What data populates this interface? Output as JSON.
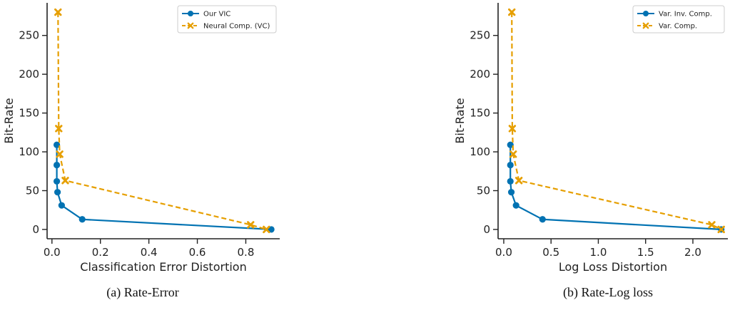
{
  "chart_data": [
    {
      "type": "line",
      "caption": "(a) Rate-Error",
      "xlabel": "Classification Error Distortion",
      "ylabel": "Bit-Rate",
      "xlim": [
        -0.02,
        0.94
      ],
      "ylim": [
        -12,
        292
      ],
      "xticks": [
        0.0,
        0.2,
        0.4,
        0.6,
        0.8
      ],
      "xtick_labels": [
        "0.0",
        "0.2",
        "0.4",
        "0.6",
        "0.8"
      ],
      "yticks": [
        0,
        50,
        100,
        150,
        200,
        250
      ],
      "ytick_labels": [
        "0",
        "50",
        "100",
        "150",
        "200",
        "250"
      ],
      "legend_position": "top-right",
      "series": [
        {
          "name": "Our VIC",
          "color": "#0072b2",
          "marker": "circle",
          "dashed": false,
          "x": [
            0.02,
            0.02,
            0.02,
            0.023,
            0.04,
            0.125,
            0.905
          ],
          "y": [
            109,
            83,
            62,
            48,
            31,
            13,
            0
          ]
        },
        {
          "name": "Neural Comp. (VC)",
          "color": "#e69f00",
          "marker": "x",
          "dashed": true,
          "x": [
            0.025,
            0.028,
            0.032,
            0.055,
            0.82,
            0.885
          ],
          "y": [
            280,
            130,
            97,
            63,
            6,
            0
          ]
        }
      ]
    },
    {
      "type": "line",
      "caption": "(b) Rate-Log loss",
      "xlabel": "Log Loss Distortion",
      "ylabel": "Bit-Rate",
      "xlim": [
        -0.06,
        2.37
      ],
      "ylim": [
        -12,
        292
      ],
      "xticks": [
        0.0,
        0.5,
        1.0,
        1.5,
        2.0
      ],
      "xtick_labels": [
        "0.0",
        "0.5",
        "1.0",
        "1.5",
        "2.0"
      ],
      "yticks": [
        0,
        50,
        100,
        150,
        200,
        250
      ],
      "ytick_labels": [
        "0",
        "50",
        "100",
        "150",
        "200",
        "250"
      ],
      "legend_position": "top-right",
      "series": [
        {
          "name": "Var. Inv. Comp.",
          "color": "#0072b2",
          "marker": "circle",
          "dashed": false,
          "x": [
            0.07,
            0.07,
            0.07,
            0.08,
            0.13,
            0.41,
            2.3
          ],
          "y": [
            109,
            83,
            62,
            48,
            31,
            13,
            0
          ]
        },
        {
          "name": "Var. Comp.",
          "color": "#e69f00",
          "marker": "x",
          "dashed": true,
          "x": [
            0.085,
            0.09,
            0.1,
            0.16,
            2.2,
            2.3
          ],
          "y": [
            280,
            130,
            97,
            63,
            6,
            0
          ]
        }
      ]
    }
  ]
}
